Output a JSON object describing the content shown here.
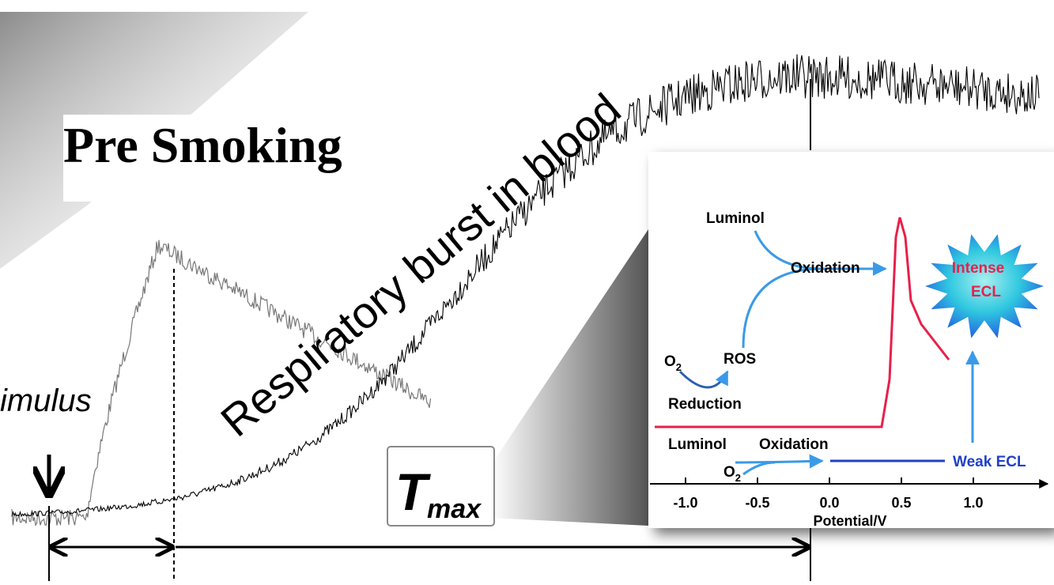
{
  "title": "Pre Smoking",
  "curve_label": "Respiratory burst in blood",
  "stimulus_label": "imulus",
  "tmax": {
    "symbol": "T",
    "subscript": "max"
  },
  "inset": {
    "upper_reagent": "Luminol",
    "upper_process": "Oxidation",
    "strong_result": [
      "Intense",
      "ECL"
    ],
    "oxygen": {
      "symbol": "O",
      "subscript": "2"
    },
    "ros": "ROS",
    "reduction": "Reduction",
    "lower_reagent": "Luminol",
    "lower_process": "Oxidation",
    "lower_oxygen": {
      "symbol": "O",
      "subscript": "2"
    },
    "weak_result": "Weak ECL",
    "ticks": [
      "-1.0",
      "-0.5",
      "0.0",
      "0.5",
      "1.0"
    ],
    "axis_label": "Potential/V"
  }
}
